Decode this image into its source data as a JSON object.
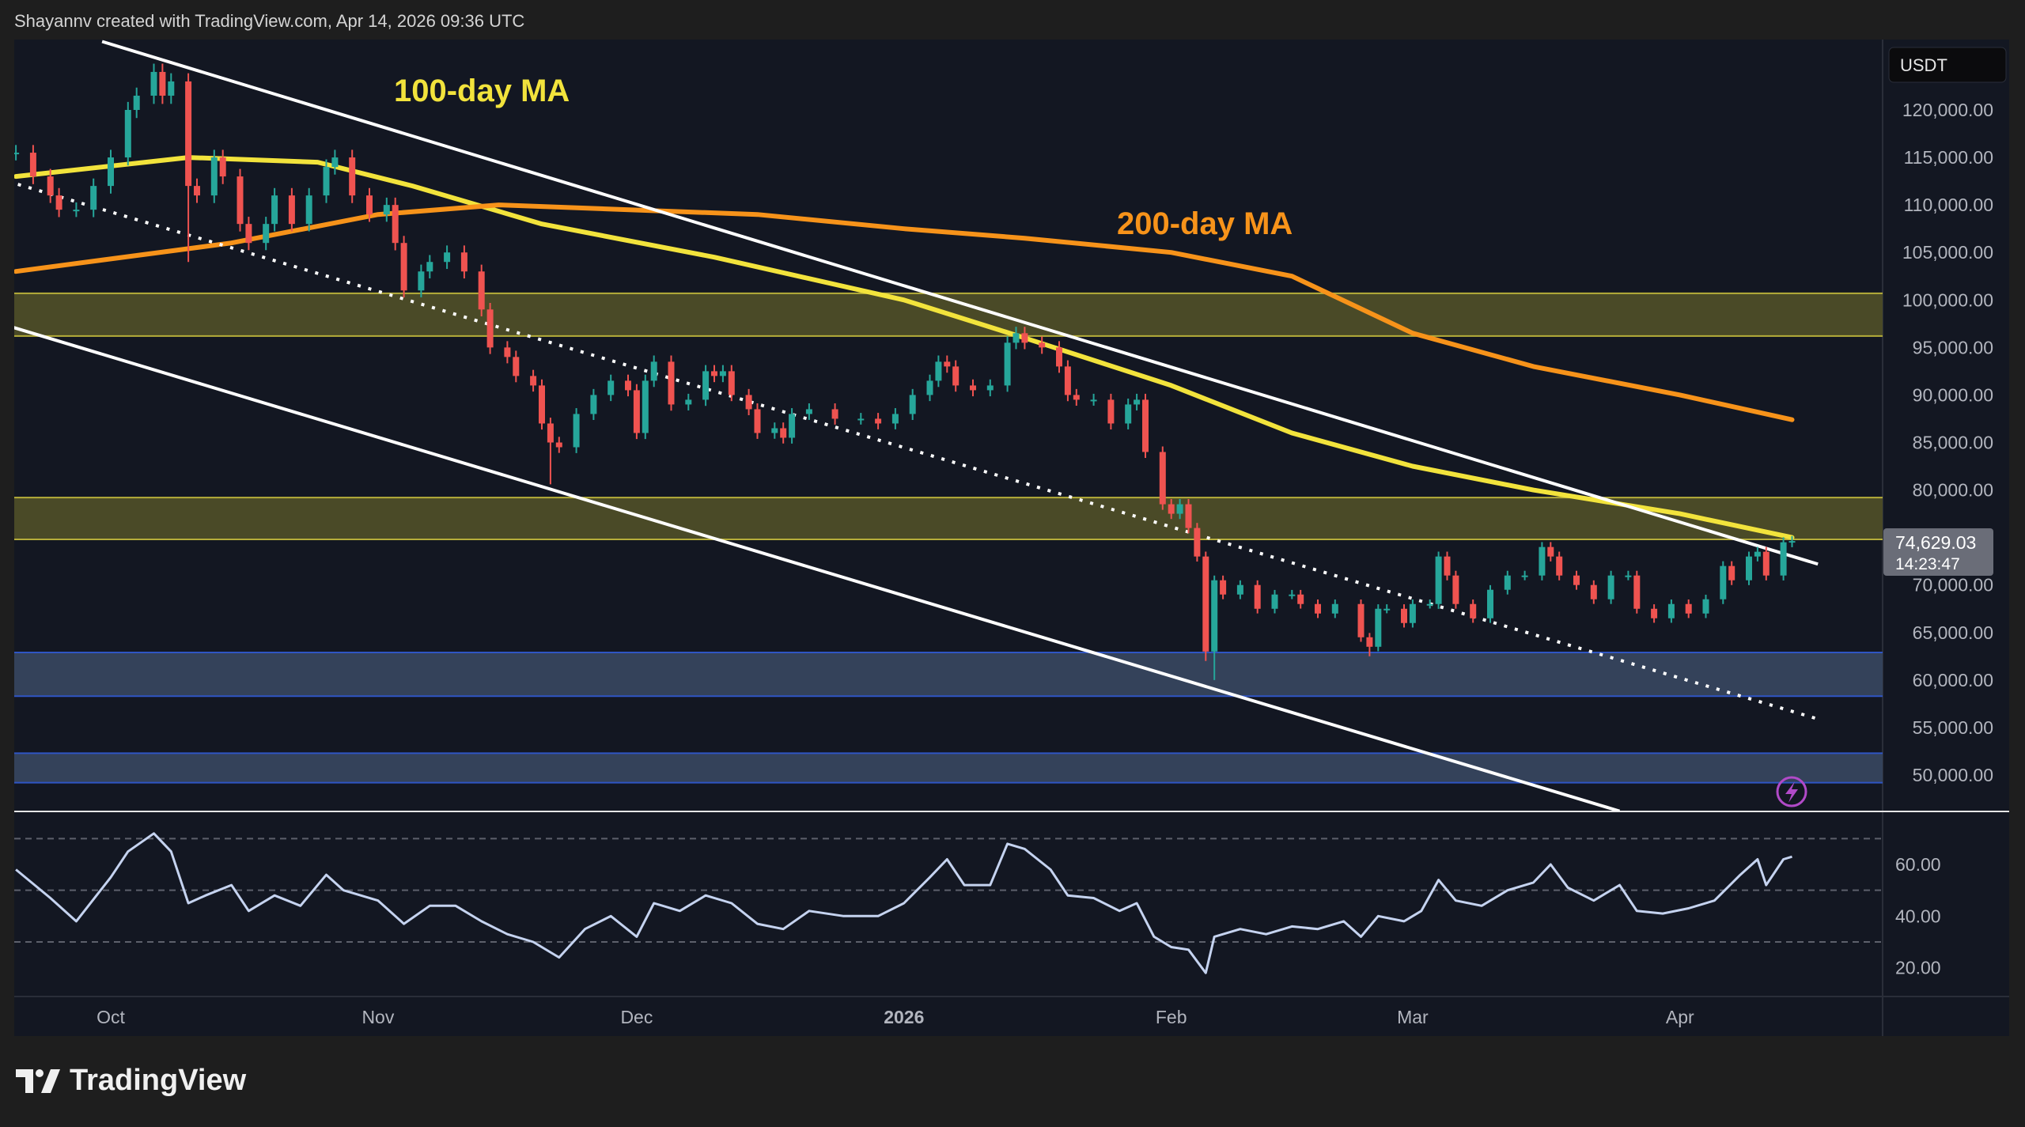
{
  "header": {
    "attribution": "Shayannv created with TradingView.com, Apr 14, 2026 09:36 UTC"
  },
  "footer": {
    "logo_text": "TradingView"
  },
  "colors": {
    "up": "#26a69a",
    "down": "#ef5350",
    "ma100": "#f2e33c",
    "ma200": "#f7931a",
    "resistance_zone": "#4a4a27",
    "support_zone": "#34425a",
    "background": "#131722"
  },
  "chart_data": {
    "type": "candlestick",
    "currency_label": "USDT",
    "last_price": "74,629.03",
    "countdown": "14:23:47",
    "ylim": [
      46000,
      127000
    ],
    "y_ticks": [
      "120,000.00",
      "115,000.00",
      "110,000.00",
      "105,000.00",
      "100,000.00",
      "95,000.00",
      "90,000.00",
      "85,000.00",
      "80,000.00",
      "70,000.00",
      "65,000.00",
      "60,000.00",
      "55,000.00",
      "50,000.00"
    ],
    "y_tick_values": [
      120000,
      115000,
      110000,
      105000,
      100000,
      95000,
      90000,
      85000,
      80000,
      70000,
      65000,
      60000,
      55000,
      50000
    ],
    "x_ticks": [
      {
        "label": "Oct",
        "date": "2025-10-01"
      },
      {
        "label": "Nov",
        "date": "2025-11-01"
      },
      {
        "label": "Dec",
        "date": "2025-12-01"
      },
      {
        "label": "2026",
        "date": "2026-01-01",
        "bold": true
      },
      {
        "label": "Feb",
        "date": "2026-02-01"
      },
      {
        "label": "Mar",
        "date": "2026-03-01"
      },
      {
        "label": "Apr",
        "date": "2026-04-01"
      }
    ],
    "candles": [
      [
        "2025-09-20",
        115500
      ],
      [
        "2025-09-22",
        113000
      ],
      [
        "2025-09-24",
        111000
      ],
      [
        "2025-09-25",
        109500
      ],
      [
        "2025-09-27",
        109500
      ],
      [
        "2025-09-29",
        112000
      ],
      [
        "2025-10-01",
        115000
      ],
      [
        "2025-10-03",
        120000
      ],
      [
        "2025-10-04",
        121500
      ],
      [
        "2025-10-06",
        124000
      ],
      [
        "2025-10-07",
        121500
      ],
      [
        "2025-10-08",
        123000
      ],
      {
        "date": "2025-10-10",
        "close": 112000,
        "low": 104000
      },
      [
        "2025-10-11",
        111000
      ],
      [
        "2025-10-13",
        115000
      ],
      [
        "2025-10-14",
        113000
      ],
      [
        "2025-10-16",
        108000
      ],
      [
        "2025-10-17",
        106000
      ],
      [
        "2025-10-19",
        108000
      ],
      [
        "2025-10-20",
        111000
      ],
      [
        "2025-10-22",
        108000
      ],
      [
        "2025-10-24",
        111000
      ],
      [
        "2025-10-26",
        114000
      ],
      [
        "2025-10-27",
        115000
      ],
      [
        "2025-10-29",
        111000
      ],
      [
        "2025-10-31",
        109000
      ],
      [
        "2025-11-02",
        110000
      ],
      [
        "2025-11-03",
        106000
      ],
      [
        "2025-11-04",
        101000
      ],
      [
        "2025-11-06",
        103000
      ],
      [
        "2025-11-07",
        104000
      ],
      [
        "2025-11-09",
        105000
      ],
      [
        "2025-11-11",
        103000
      ],
      [
        "2025-11-13",
        99000
      ],
      [
        "2025-11-14",
        95000
      ],
      [
        "2025-11-16",
        94000
      ],
      [
        "2025-11-17",
        92000
      ],
      [
        "2025-11-19",
        91000
      ],
      [
        "2025-11-20",
        87000
      ],
      {
        "date": "2025-11-21",
        "close": 85000,
        "low": 80600
      },
      [
        "2025-11-22",
        84500
      ],
      [
        "2025-11-24",
        88000
      ],
      [
        "2025-11-26",
        90000
      ],
      [
        "2025-11-28",
        91500
      ],
      [
        "2025-11-30",
        90500
      ],
      [
        "2025-12-01",
        86000
      ],
      [
        "2025-12-02",
        91500
      ],
      [
        "2025-12-03",
        93500
      ],
      [
        "2025-12-05",
        89000
      ],
      [
        "2025-12-07",
        89500
      ],
      [
        "2025-12-09",
        92500
      ],
      [
        "2025-12-10",
        92000
      ],
      [
        "2025-12-11",
        92500
      ],
      [
        "2025-12-12",
        90000
      ],
      [
        "2025-12-14",
        88500
      ],
      [
        "2025-12-15",
        86000
      ],
      [
        "2025-12-17",
        86500
      ],
      [
        "2025-12-18",
        85500
      ],
      [
        "2025-12-19",
        88000
      ],
      [
        "2025-12-21",
        88500
      ],
      [
        "2025-12-24",
        87500
      ],
      [
        "2025-12-27",
        87500
      ],
      [
        "2025-12-29",
        87000
      ],
      [
        "2025-12-31",
        88000
      ],
      [
        "2026-01-02",
        90000
      ],
      [
        "2026-01-04",
        91500
      ],
      [
        "2026-01-05",
        93500
      ],
      [
        "2026-01-06",
        93000
      ],
      [
        "2026-01-07",
        91000
      ],
      [
        "2026-01-09",
        90500
      ],
      [
        "2026-01-11",
        91000
      ],
      [
        "2026-01-13",
        95500
      ],
      [
        "2026-01-14",
        96500
      ],
      [
        "2026-01-15",
        95500
      ],
      [
        "2026-01-17",
        95000
      ],
      [
        "2026-01-19",
        93000
      ],
      [
        "2026-01-20",
        90000
      ],
      [
        "2026-01-21",
        89500
      ],
      [
        "2026-01-23",
        89500
      ],
      [
        "2026-01-25",
        87000
      ],
      [
        "2026-01-27",
        89000
      ],
      [
        "2026-01-28",
        89500
      ],
      [
        "2026-01-29",
        84000
      ],
      [
        "2026-01-31",
        78500
      ],
      [
        "2026-02-01",
        77500
      ],
      [
        "2026-02-02",
        78500
      ],
      [
        "2026-02-03",
        76000
      ],
      [
        "2026-02-04",
        73000
      ],
      {
        "date": "2026-02-05",
        "close": 63000,
        "low": 62000
      },
      {
        "date": "2026-02-06",
        "close": 70500,
        "low": 60000
      },
      [
        "2026-02-07",
        69000
      ],
      [
        "2026-02-09",
        70000
      ],
      [
        "2026-02-11",
        67500
      ],
      [
        "2026-02-13",
        69000
      ],
      [
        "2026-02-15",
        69000
      ],
      [
        "2026-02-16",
        68000
      ],
      [
        "2026-02-18",
        67000
      ],
      [
        "2026-02-20",
        68000
      ],
      [
        "2026-02-23",
        64500
      ],
      {
        "date": "2026-02-24",
        "close": 63500,
        "low": 62500
      },
      [
        "2026-02-25",
        67500
      ],
      [
        "2026-02-26",
        67500
      ],
      [
        "2026-02-28",
        66000
      ],
      [
        "2026-03-01",
        68000
      ],
      [
        "2026-03-03",
        68000
      ],
      [
        "2026-03-04",
        73000
      ],
      [
        "2026-03-05",
        71000
      ],
      [
        "2026-03-06",
        68000
      ],
      [
        "2026-03-08",
        66500
      ],
      [
        "2026-03-10",
        69500
      ],
      [
        "2026-03-12",
        71000
      ],
      [
        "2026-03-14",
        71000
      ],
      [
        "2026-03-16",
        74000
      ],
      [
        "2026-03-17",
        73000
      ],
      [
        "2026-03-18",
        71000
      ],
      [
        "2026-03-20",
        70000
      ],
      [
        "2026-03-22",
        68500
      ],
      [
        "2026-03-24",
        71000
      ],
      [
        "2026-03-26",
        71000
      ],
      [
        "2026-03-27",
        67500
      ],
      [
        "2026-03-29",
        66500
      ],
      [
        "2026-03-31",
        68000
      ],
      [
        "2026-04-02",
        67000
      ],
      [
        "2026-04-04",
        68500
      ],
      [
        "2026-04-06",
        72000
      ],
      [
        "2026-04-07",
        70500
      ],
      [
        "2026-04-09",
        73000
      ],
      [
        "2026-04-10",
        73500
      ],
      [
        "2026-04-11",
        71000
      ],
      [
        "2026-04-13",
        74500
      ],
      [
        "2026-04-14",
        74629
      ]
    ],
    "series": [
      {
        "name": "100-day MA",
        "points": [
          [
            "2025-09-20",
            113000
          ],
          [
            "2025-10-10",
            115000
          ],
          [
            "2025-10-25",
            114500
          ],
          [
            "2025-11-05",
            112000
          ],
          [
            "2025-11-20",
            108000
          ],
          [
            "2025-12-10",
            104500
          ],
          [
            "2026-01-01",
            100000
          ],
          [
            "2026-01-15",
            96000
          ],
          [
            "2026-02-01",
            91000
          ],
          [
            "2026-02-15",
            86000
          ],
          [
            "2026-03-01",
            82500
          ],
          [
            "2026-03-15",
            80000
          ],
          [
            "2026-04-01",
            77500
          ],
          [
            "2026-04-14",
            75000
          ]
        ]
      },
      {
        "name": "200-day MA",
        "points": [
          [
            "2025-09-20",
            103000
          ],
          [
            "2025-10-15",
            106000
          ],
          [
            "2025-11-01",
            109000
          ],
          [
            "2025-11-15",
            110000
          ],
          [
            "2025-12-15",
            109000
          ],
          [
            "2026-01-01",
            107500
          ],
          [
            "2026-01-15",
            106500
          ],
          [
            "2026-02-01",
            105000
          ],
          [
            "2026-02-15",
            102500
          ],
          [
            "2026-03-01",
            96500
          ],
          [
            "2026-03-15",
            93000
          ],
          [
            "2026-04-01",
            90000
          ],
          [
            "2026-04-14",
            87400
          ]
        ]
      }
    ],
    "trendlines": [
      {
        "style": "solid",
        "from": [
          "2025-09-30",
          127200
        ],
        "to": [
          "2026-04-17",
          72200
        ]
      },
      {
        "style": "solid",
        "from": [
          "2025-09-19",
          97300
        ],
        "to": [
          "2026-03-25",
          46200
        ]
      },
      {
        "style": "dotted",
        "from": [
          "2025-09-19",
          112500
        ],
        "to": [
          "2026-04-17",
          55900
        ]
      }
    ],
    "zones": [
      {
        "kind": "resistance",
        "low": 96200,
        "high": 100700
      },
      {
        "kind": "resistance",
        "low": 74800,
        "high": 79200
      },
      {
        "kind": "support",
        "low": 58300,
        "high": 62900
      },
      {
        "kind": "support",
        "low": 49200,
        "high": 52300
      }
    ],
    "annotations": [
      {
        "text": "100-day MA",
        "color": "#f2e33c"
      },
      {
        "text": "200-day MA",
        "color": "#f7931a"
      }
    ],
    "rsi": {
      "ticks": [
        "60.00",
        "40.00",
        "20.00"
      ],
      "tick_values": [
        60,
        40,
        20
      ],
      "bands": [
        70,
        50,
        30
      ],
      "points": [
        [
          "2025-09-20",
          58
        ],
        [
          "2025-09-24",
          47
        ],
        [
          "2025-09-27",
          38
        ],
        [
          "2025-10-01",
          55
        ],
        [
          "2025-10-03",
          65
        ],
        [
          "2025-10-06",
          72
        ],
        [
          "2025-10-08",
          65
        ],
        [
          "2025-10-10",
          45
        ],
        [
          "2025-10-12",
          48
        ],
        [
          "2025-10-15",
          52
        ],
        [
          "2025-10-17",
          42
        ],
        [
          "2025-10-20",
          48
        ],
        [
          "2025-10-23",
          44
        ],
        [
          "2025-10-26",
          56
        ],
        [
          "2025-10-28",
          50
        ],
        [
          "2025-11-01",
          46
        ],
        [
          "2025-11-04",
          37
        ],
        [
          "2025-11-07",
          44
        ],
        [
          "2025-11-10",
          44
        ],
        [
          "2025-11-13",
          38
        ],
        [
          "2025-11-16",
          33
        ],
        [
          "2025-11-19",
          30
        ],
        [
          "2025-11-22",
          24
        ],
        [
          "2025-11-25",
          35
        ],
        [
          "2025-11-28",
          40
        ],
        [
          "2025-12-01",
          32
        ],
        [
          "2025-12-03",
          45
        ],
        [
          "2025-12-06",
          42
        ],
        [
          "2025-12-09",
          48
        ],
        [
          "2025-12-12",
          45
        ],
        [
          "2025-12-15",
          37
        ],
        [
          "2025-12-18",
          35
        ],
        [
          "2025-12-21",
          42
        ],
        [
          "2025-12-25",
          40
        ],
        [
          "2025-12-29",
          40
        ],
        [
          "2026-01-01",
          45
        ],
        [
          "2026-01-04",
          55
        ],
        [
          "2026-01-06",
          62
        ],
        [
          "2026-01-08",
          52
        ],
        [
          "2026-01-11",
          52
        ],
        [
          "2026-01-13",
          68
        ],
        [
          "2026-01-15",
          66
        ],
        [
          "2026-01-18",
          58
        ],
        [
          "2026-01-20",
          48
        ],
        [
          "2026-01-23",
          47
        ],
        [
          "2026-01-26",
          42
        ],
        [
          "2026-01-28",
          45
        ],
        [
          "2026-01-30",
          32
        ],
        [
          "2026-02-01",
          28
        ],
        [
          "2026-02-03",
          27
        ],
        [
          "2026-02-05",
          18
        ],
        [
          "2026-02-06",
          32
        ],
        [
          "2026-02-09",
          35
        ],
        [
          "2026-02-12",
          33
        ],
        [
          "2026-02-15",
          36
        ],
        [
          "2026-02-18",
          35
        ],
        [
          "2026-02-21",
          38
        ],
        [
          "2026-02-23",
          32
        ],
        [
          "2026-02-25",
          40
        ],
        [
          "2026-02-28",
          38
        ],
        [
          "2026-03-02",
          42
        ],
        [
          "2026-03-04",
          54
        ],
        [
          "2026-03-06",
          46
        ],
        [
          "2026-03-09",
          44
        ],
        [
          "2026-03-12",
          50
        ],
        [
          "2026-03-15",
          53
        ],
        [
          "2026-03-17",
          60
        ],
        [
          "2026-03-19",
          51
        ],
        [
          "2026-03-22",
          46
        ],
        [
          "2026-03-25",
          52
        ],
        [
          "2026-03-27",
          42
        ],
        [
          "2026-03-30",
          41
        ],
        [
          "2026-04-02",
          43
        ],
        [
          "2026-04-05",
          46
        ],
        [
          "2026-04-08",
          56
        ],
        [
          "2026-04-10",
          62
        ],
        [
          "2026-04-11",
          52
        ],
        [
          "2026-04-13",
          62
        ],
        [
          "2026-04-14",
          63
        ]
      ]
    }
  }
}
